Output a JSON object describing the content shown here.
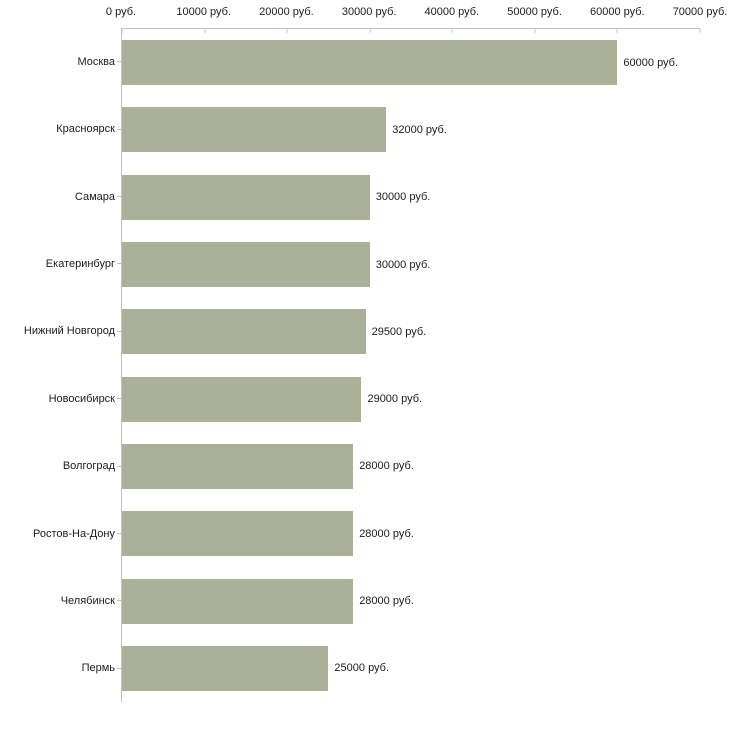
{
  "chart_data": {
    "type": "bar",
    "orientation": "horizontal",
    "title": "",
    "categories": [
      "Москва",
      "Красноярск",
      "Самара",
      "Екатеринбург",
      "Нижний Новгород",
      "Новосибирск",
      "Волгоград",
      "Ростов-На-Дону",
      "Челябинск",
      "Пермь"
    ],
    "values": [
      60000,
      32000,
      30000,
      30000,
      29500,
      29000,
      28000,
      28000,
      28000,
      25000
    ],
    "value_labels": [
      "60000 руб.",
      "32000 руб.",
      "30000 руб.",
      "30000 руб.",
      "29500 руб.",
      "29000 руб.",
      "28000 руб.",
      "28000 руб.",
      "28000 руб.",
      "25000 руб."
    ],
    "x_ticks": [
      0,
      10000,
      20000,
      30000,
      40000,
      50000,
      60000,
      70000
    ],
    "x_tick_labels": [
      "0 руб.",
      "10000 руб.",
      "20000 руб.",
      "30000 руб.",
      "40000 руб.",
      "50000 руб.",
      "60000 руб.",
      "70000 руб."
    ],
    "xlim": [
      0,
      70000
    ],
    "unit_suffix": " руб.",
    "grid": false,
    "legend": false,
    "colors": {
      "bar": "#abb198",
      "axis_line": "#c3c3c3",
      "tick_mark": "#c9c49c",
      "text": "#1c1c1c",
      "background": "#ffffff"
    }
  }
}
